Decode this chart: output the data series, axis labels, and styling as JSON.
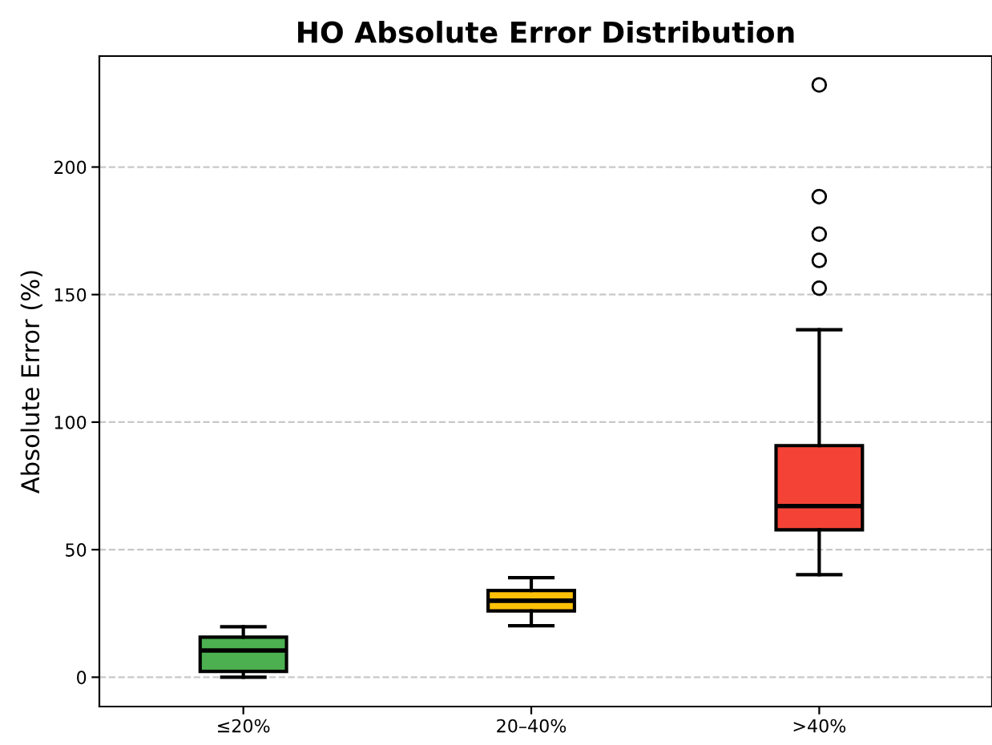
{
  "chart_data": {
    "type": "box",
    "title": "HO Absolute Error Distribution",
    "ylabel": "Absolute Error (%)",
    "categories": [
      "≤20%",
      "20–40%",
      ">40%"
    ],
    "colors": [
      "#4caf50",
      "#ffc107",
      "#f44336"
    ],
    "boxes": [
      {
        "low": 0,
        "q1": 2.3,
        "median": 10.5,
        "q3": 15.7,
        "high": 19.8
      },
      {
        "low": 20.2,
        "q1": 26,
        "median": 30,
        "q3": 34,
        "high": 39
      },
      {
        "low": 40.2,
        "q1": 57.8,
        "median": 67.1,
        "q3": 90.8,
        "high": 136.2,
        "outliers": [
          152.5,
          163.4,
          173.7,
          188.4,
          232.2
        ]
      }
    ],
    "ylim": [
      -11.5,
      243.5
    ],
    "yticks": [
      0,
      50,
      100,
      150,
      200
    ],
    "grid": "y"
  }
}
